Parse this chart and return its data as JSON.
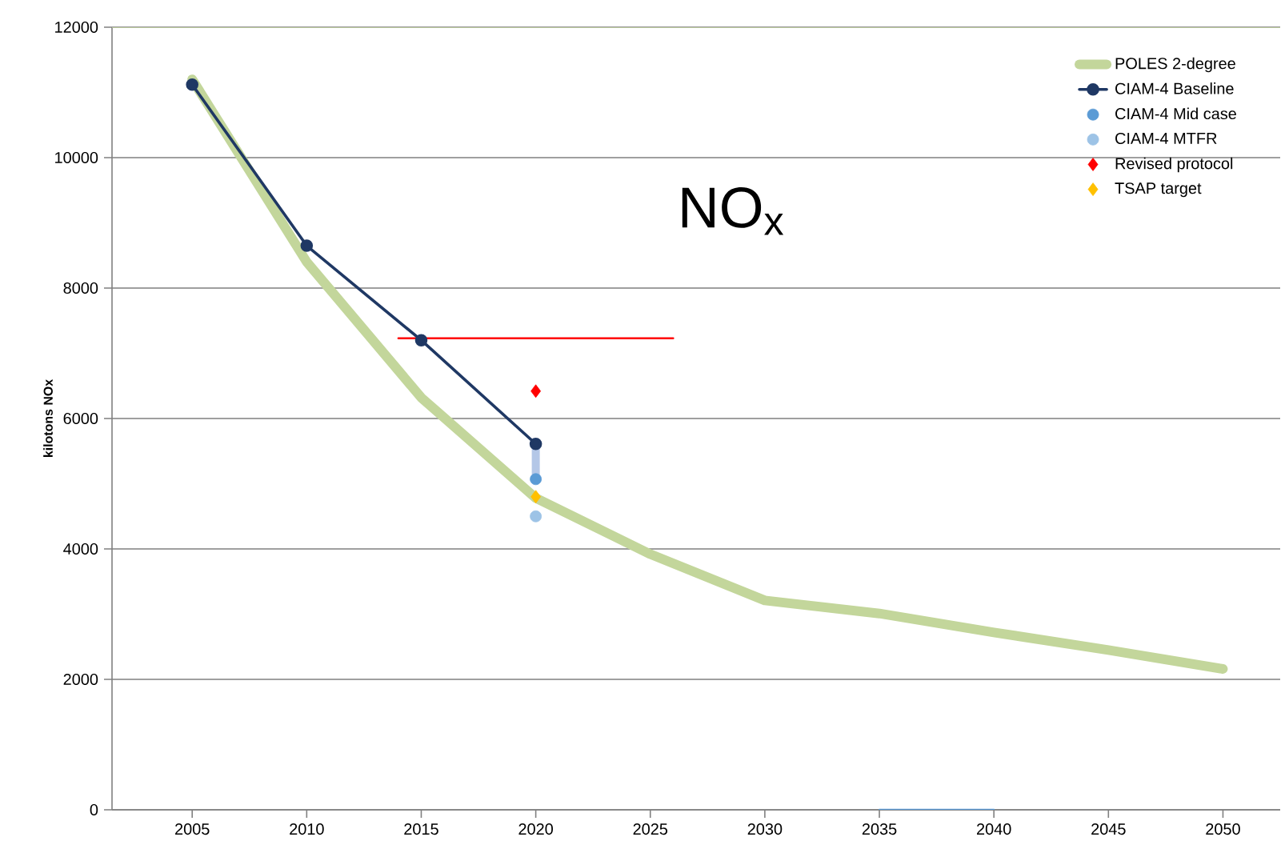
{
  "chart_data": {
    "type": "line",
    "ylabel": "kilotons NOx",
    "annotations": [
      "NO$_{x}$"
    ],
    "xlim": [
      2001.5,
      2052.5
    ],
    "ylim": [
      0,
      12000
    ],
    "xticks": [
      2005,
      2010,
      2015,
      2020,
      2025,
      2030,
      2035,
      2040,
      2045,
      2050
    ],
    "yticks": [
      0,
      2000,
      4000,
      6000,
      8000,
      10000,
      12000
    ],
    "grid": "y",
    "legend": "top right",
    "ref_lines": [
      {
        "axis": "y",
        "value": 12000,
        "label": null,
        "color": "#c3d69b"
      }
    ],
    "series": [
      {
        "name": "POLES 2-degree",
        "color": "#c3d69b",
        "marker": "none",
        "x": [
          2005,
          2010,
          2015,
          2020,
          2025,
          2030,
          2035,
          2040,
          2045,
          2050
        ],
        "values": [
          11200,
          8400,
          6320,
          4780,
          3920,
          3210,
          3010,
          2720,
          2450,
          2160
        ]
      },
      {
        "name": "CIAM-4 Baseline",
        "color": "#1f3864",
        "marker": "circle",
        "x": [
          2005,
          2010,
          2015,
          2020
        ],
        "values": [
          11120,
          8650,
          7200,
          5610
        ]
      },
      {
        "color": "#b4c7e7",
        "marker": "none",
        "x": [
          2020,
          2020
        ],
        "values": [
          5610,
          5070
        ]
      },
      {
        "name": "CIAM-4 Mid case",
        "type": "scatter",
        "color": "#5b9bd5",
        "marker": "circle",
        "x": [
          2020
        ],
        "values": [
          5070
        ]
      },
      {
        "name": "CIAM-4 MTFR",
        "type": "scatter",
        "color": "#9dc3e6",
        "marker": "circle",
        "x": [
          2020
        ],
        "values": [
          4500
        ]
      },
      {
        "name": "Revised protocol",
        "type": "scatter",
        "color": "#ff0000",
        "marker": "diamond",
        "x": [
          2020
        ],
        "values": [
          6420
        ]
      },
      {
        "name": "TSAP target",
        "type": "scatter",
        "color": "#ffc000",
        "marker": "diamond",
        "x": [
          2020
        ],
        "values": [
          4800
        ]
      },
      {
        "color": "#ff0000",
        "marker": "none",
        "x": [
          2014,
          2026
        ],
        "values": [
          7230,
          7230
        ]
      },
      {
        "color": "#5b9bd5",
        "marker": "none",
        "x": [
          2035,
          2040
        ],
        "values": [
          0,
          0
        ]
      }
    ]
  }
}
